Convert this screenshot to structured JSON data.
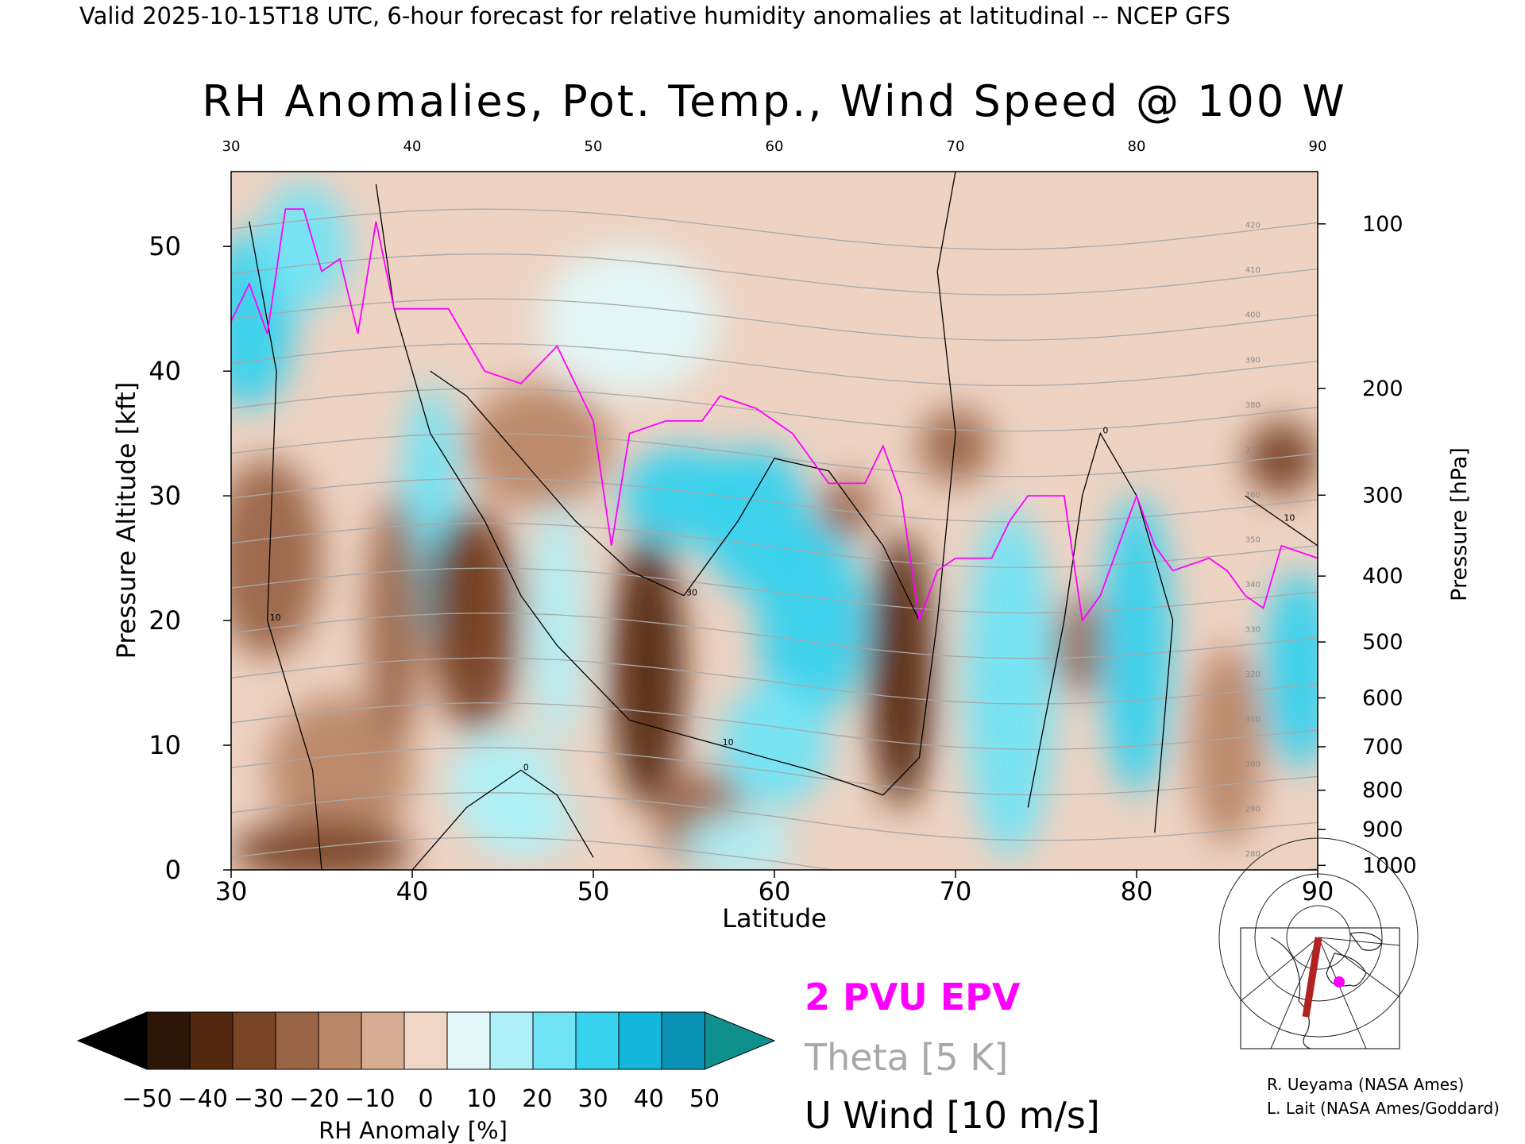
{
  "header": {
    "valid_line": "Valid 2025-10-15T18 UTC, 6-hour forecast for relative humidity anomalies at latitudinal -- NCEP GFS",
    "title": "RH Anomalies, Pot. Temp., Wind Speed @ 100 W"
  },
  "chart_data": {
    "type": "heatmap",
    "xlabel": "Latitude",
    "ylabel_left": "Pressure Altitude [kft]",
    "ylabel_right": "Pressure [hPa]",
    "xlim": [
      30,
      90
    ],
    "ylim": [
      0,
      56
    ],
    "x_ticks": [
      30,
      40,
      50,
      60,
      70,
      80,
      90
    ],
    "x_tick_labels": [
      "30",
      "40",
      "50",
      "60",
      "70",
      "80",
      "90"
    ],
    "y_ticks": [
      0,
      10,
      20,
      30,
      40,
      50
    ],
    "y_tick_labels": [
      "0",
      "10",
      "20",
      "30",
      "40",
      "50"
    ],
    "pressure_ticks": [
      {
        "hpa": 100,
        "label": "100"
      },
      {
        "hpa": 200,
        "label": "200"
      },
      {
        "hpa": 300,
        "label": "300"
      },
      {
        "hpa": 400,
        "label": "400"
      },
      {
        "hpa": 500,
        "label": "500"
      },
      {
        "hpa": 600,
        "label": "600"
      },
      {
        "hpa": 700,
        "label": "700"
      },
      {
        "hpa": 800,
        "label": "800"
      },
      {
        "hpa": 900,
        "label": "900"
      },
      {
        "hpa": 1000,
        "label": "1000"
      }
    ],
    "anomaly_blobs": [
      {
        "lat": 31,
        "alt": 44,
        "w": 2.5,
        "h": 7,
        "v": 40
      },
      {
        "lat": 34,
        "alt": 50,
        "w": 2.5,
        "h": 5,
        "v": 30
      },
      {
        "lat": 32,
        "alt": 25,
        "w": 3,
        "h": 8,
        "v": -28
      },
      {
        "lat": 36,
        "alt": 8,
        "w": 4,
        "h": 6,
        "v": -18
      },
      {
        "lat": 35,
        "alt": 1.5,
        "w": 5,
        "h": 2.5,
        "v": -40
      },
      {
        "lat": 41,
        "alt": 29,
        "w": 1.6,
        "h": 10,
        "v": 32
      },
      {
        "lat": 42.5,
        "alt": 22,
        "w": 1.6,
        "h": 6,
        "v": -55
      },
      {
        "lat": 43.5,
        "alt": 20,
        "w": 2.5,
        "h": 9,
        "v": -38
      },
      {
        "lat": 39,
        "alt": 20,
        "w": 1.5,
        "h": 10,
        "v": -22
      },
      {
        "lat": 45,
        "alt": 7,
        "w": 3,
        "h": 4,
        "v": 28
      },
      {
        "lat": 46,
        "alt": 4,
        "w": 3,
        "h": 3,
        "v": 20
      },
      {
        "lat": 48,
        "alt": 20,
        "w": 1.4,
        "h": 10,
        "v": 25
      },
      {
        "lat": 47,
        "alt": 34,
        "w": 4,
        "h": 5,
        "v": -18
      },
      {
        "lat": 52,
        "alt": 44,
        "w": 5,
        "h": 6,
        "v": 15
      },
      {
        "lat": 53,
        "alt": 16,
        "w": 2,
        "h": 11,
        "v": -42
      },
      {
        "lat": 56,
        "alt": 4,
        "w": 2.5,
        "h": 4,
        "v": -28
      },
      {
        "lat": 55,
        "alt": 30,
        "w": 3.5,
        "h": 4,
        "v": 40
      },
      {
        "lat": 59,
        "alt": 28,
        "w": 3,
        "h": 6,
        "v": 40
      },
      {
        "lat": 62,
        "alt": 20,
        "w": 3,
        "h": 8,
        "v": 42
      },
      {
        "lat": 60,
        "alt": 10,
        "w": 3,
        "h": 5,
        "v": 30
      },
      {
        "lat": 64,
        "alt": 29,
        "w": 1.5,
        "h": 2.5,
        "v": -25
      },
      {
        "lat": 67,
        "alt": 16,
        "w": 1.8,
        "h": 11,
        "v": -42
      },
      {
        "lat": 70,
        "alt": 34,
        "w": 2,
        "h": 3,
        "v": -30
      },
      {
        "lat": 73,
        "alt": 15,
        "w": 2.5,
        "h": 14,
        "v": 35
      },
      {
        "lat": 77,
        "alt": 18,
        "w": 1.5,
        "h": 4,
        "v": -25
      },
      {
        "lat": 80,
        "alt": 18,
        "w": 2,
        "h": 12,
        "v": 45
      },
      {
        "lat": 85,
        "alt": 10,
        "w": 2,
        "h": 8,
        "v": -15
      },
      {
        "lat": 88,
        "alt": 33,
        "w": 2,
        "h": 3,
        "v": -38
      },
      {
        "lat": 89,
        "alt": 16,
        "w": 2,
        "h": 8,
        "v": 40
      },
      {
        "lat": 58,
        "alt": 2,
        "w": 3,
        "h": 2.5,
        "v": 20
      }
    ],
    "u_wind_contours": [
      {
        "label": "10",
        "points": [
          [
            35,
            0
          ],
          [
            34.5,
            8
          ],
          [
            32,
            20
          ],
          [
            32.5,
            40
          ],
          [
            31,
            52
          ]
        ]
      },
      {
        "label": "10",
        "points": [
          [
            38,
            55
          ],
          [
            39,
            45
          ],
          [
            41,
            35
          ],
          [
            44,
            28
          ],
          [
            46,
            22
          ],
          [
            48,
            18
          ],
          [
            50,
            15
          ],
          [
            52,
            12
          ],
          [
            57,
            10
          ],
          [
            62,
            8
          ],
          [
            66,
            6
          ],
          [
            68,
            9
          ],
          [
            69,
            20
          ],
          [
            70,
            35
          ],
          [
            69,
            48
          ],
          [
            70,
            56
          ]
        ]
      },
      {
        "label": "30",
        "points": [
          [
            41,
            40
          ],
          [
            43,
            38
          ],
          [
            46,
            33
          ],
          [
            49,
            28
          ],
          [
            52,
            24
          ],
          [
            55,
            22
          ],
          [
            58,
            28
          ],
          [
            60,
            33
          ],
          [
            63,
            32
          ],
          [
            66,
            26
          ],
          [
            68,
            20
          ]
        ]
      },
      {
        "label": "0",
        "points": [
          [
            40,
            0
          ],
          [
            43,
            5
          ],
          [
            46,
            8
          ],
          [
            48,
            6
          ],
          [
            50,
            1
          ]
        ]
      },
      {
        "label": "0",
        "points": [
          [
            74,
            5
          ],
          [
            76,
            20
          ],
          [
            77,
            30
          ],
          [
            78,
            35
          ],
          [
            80,
            30
          ],
          [
            82,
            20
          ],
          [
            81,
            3
          ]
        ]
      },
      {
        "label": "10",
        "points": [
          [
            86,
            30
          ],
          [
            88,
            28
          ],
          [
            90,
            26
          ]
        ]
      }
    ],
    "epv_2pvu": [
      [
        30,
        44
      ],
      [
        31,
        47
      ],
      [
        32,
        43
      ],
      [
        33,
        53
      ],
      [
        34,
        53
      ],
      [
        35,
        48
      ],
      [
        36,
        49
      ],
      [
        37,
        43
      ],
      [
        38,
        52
      ],
      [
        39,
        45
      ],
      [
        42,
        45
      ],
      [
        44,
        40
      ],
      [
        46,
        39
      ],
      [
        48,
        42
      ],
      [
        50,
        36
      ],
      [
        51,
        26
      ],
      [
        52,
        35
      ],
      [
        54,
        36
      ],
      [
        56,
        36
      ],
      [
        57,
        38
      ],
      [
        59,
        37
      ],
      [
        61,
        35
      ],
      [
        62,
        33
      ],
      [
        63,
        31
      ],
      [
        65,
        31
      ],
      [
        66,
        34
      ],
      [
        67,
        30
      ],
      [
        68,
        20
      ],
      [
        69,
        24
      ],
      [
        70,
        25
      ],
      [
        72,
        25
      ],
      [
        73,
        28
      ],
      [
        74,
        30
      ],
      [
        76,
        30
      ],
      [
        77,
        20
      ],
      [
        78,
        22
      ],
      [
        80,
        30
      ],
      [
        81,
        26
      ],
      [
        82,
        24
      ],
      [
        84,
        25
      ],
      [
        85,
        24
      ],
      [
        86,
        22
      ],
      [
        87,
        21
      ],
      [
        88,
        26
      ],
      [
        90,
        25
      ]
    ],
    "theta_contours": {
      "levels_k": [
        280,
        290,
        300,
        310,
        320,
        330,
        340,
        350,
        360,
        370,
        380,
        390,
        400,
        410,
        420
      ],
      "labels": [
        "280",
        "290",
        "300",
        "310",
        "320",
        "330",
        "340",
        "350",
        "360",
        "370",
        "380",
        "390",
        "400",
        "410",
        "420"
      ]
    },
    "colorbar": {
      "title": "RH Anomaly [%]",
      "tick_labels": [
        "-50",
        "-40",
        "-30",
        "-20",
        "-10",
        "0",
        "10",
        "20",
        "30",
        "40",
        "50"
      ],
      "colors": [
        "#2b1608",
        "#52290e",
        "#7a4526",
        "#9a6446",
        "#b98667",
        "#d6ac93",
        "#efd6c6",
        "#e3f7f8",
        "#aef0f8",
        "#70e4f5",
        "#37d2ee",
        "#14b6da",
        "#0a93b6"
      ],
      "below_color": "#000000",
      "above_color": "#10908c"
    }
  },
  "legend": {
    "epv_label": "2 PVU EPV",
    "epv_color": "#ff00ff",
    "theta_label": "Theta [5 K]",
    "theta_color": "#a8a8a8",
    "wind_label": "U Wind [10 m/s]",
    "wind_color": "#000000"
  },
  "credits": {
    "line1": "R. Ueyama (NASA Ames)",
    "line2": "L. Lait (NASA Ames/Goddard)"
  }
}
